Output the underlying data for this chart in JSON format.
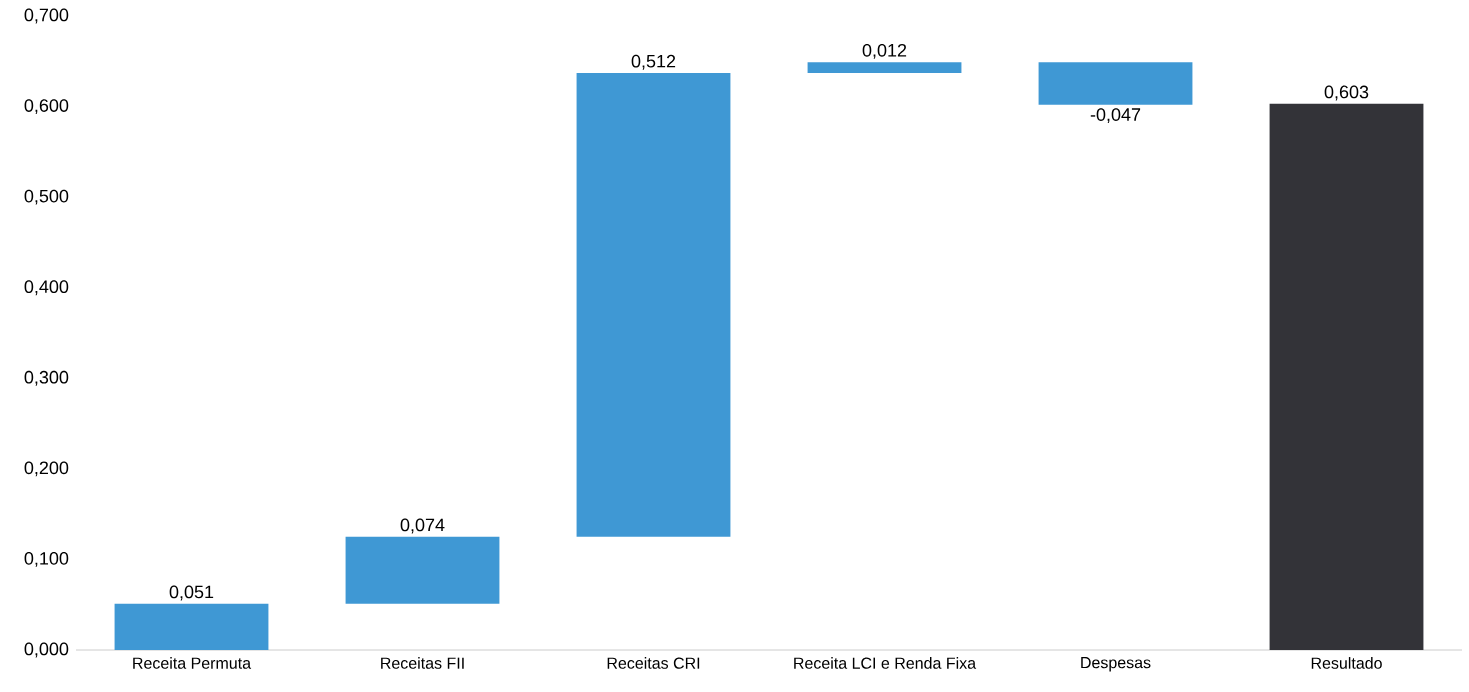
{
  "chart_data": {
    "type": "bar",
    "categories": [
      "Receita Permuta",
      "Receitas FII",
      "Receitas CRI",
      "Receita LCI e Renda Fixa",
      "Despesas",
      "Resultado"
    ],
    "values": [
      0.051,
      0.074,
      0.512,
      0.012,
      -0.047,
      0.603
    ],
    "base": [
      0,
      0.051,
      0.125,
      0.637,
      0.649,
      0
    ],
    "colors": [
      "#3f98d4",
      "#3f98d4",
      "#3f98d4",
      "#3f98d4",
      "#3f98d4",
      "#333338"
    ],
    "value_labels": [
      "0,051",
      "0,074",
      "0,512",
      "0,012",
      "-0,047",
      "0,603"
    ],
    "ylim": [
      0,
      0.7
    ],
    "yticks": [
      {
        "value": 0,
        "label": "0,000"
      },
      {
        "value": 0.1,
        "label": "0,100"
      },
      {
        "value": 0.2,
        "label": "0,200"
      },
      {
        "value": 0.3,
        "label": "0,300"
      },
      {
        "value": 0.4,
        "label": "0,400"
      },
      {
        "value": 0.5,
        "label": "0,500"
      },
      {
        "value": 0.6,
        "label": "0,600"
      },
      {
        "value": 0.7,
        "label": "0,700"
      }
    ]
  }
}
